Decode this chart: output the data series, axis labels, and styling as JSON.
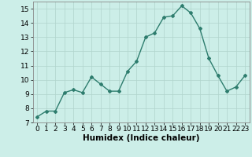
{
  "x": [
    0,
    1,
    2,
    3,
    4,
    5,
    6,
    7,
    8,
    9,
    10,
    11,
    12,
    13,
    14,
    15,
    16,
    17,
    18,
    19,
    20,
    21,
    22,
    23
  ],
  "y": [
    7.4,
    7.8,
    7.8,
    9.1,
    9.3,
    9.1,
    10.2,
    9.7,
    9.2,
    9.2,
    10.6,
    11.3,
    13.0,
    13.3,
    14.4,
    14.5,
    15.2,
    14.7,
    13.6,
    11.5,
    10.3,
    9.2,
    9.5,
    10.3
  ],
  "line_color": "#2e7d6e",
  "marker": "D",
  "markersize": 2.0,
  "linewidth": 1.0,
  "bg_color": "#cceee8",
  "grid_color": "#b0d4cc",
  "xlabel": "Humidex (Indice chaleur)",
  "xlabel_fontsize": 7.5,
  "tick_fontsize": 6.5,
  "ylim": [
    7,
    15.5
  ],
  "xlim": [
    -0.5,
    23.5
  ],
  "yticks": [
    7,
    8,
    9,
    10,
    11,
    12,
    13,
    14,
    15
  ],
  "xticks": [
    0,
    1,
    2,
    3,
    4,
    5,
    6,
    7,
    8,
    9,
    10,
    11,
    12,
    13,
    14,
    15,
    16,
    17,
    18,
    19,
    20,
    21,
    22,
    23
  ]
}
